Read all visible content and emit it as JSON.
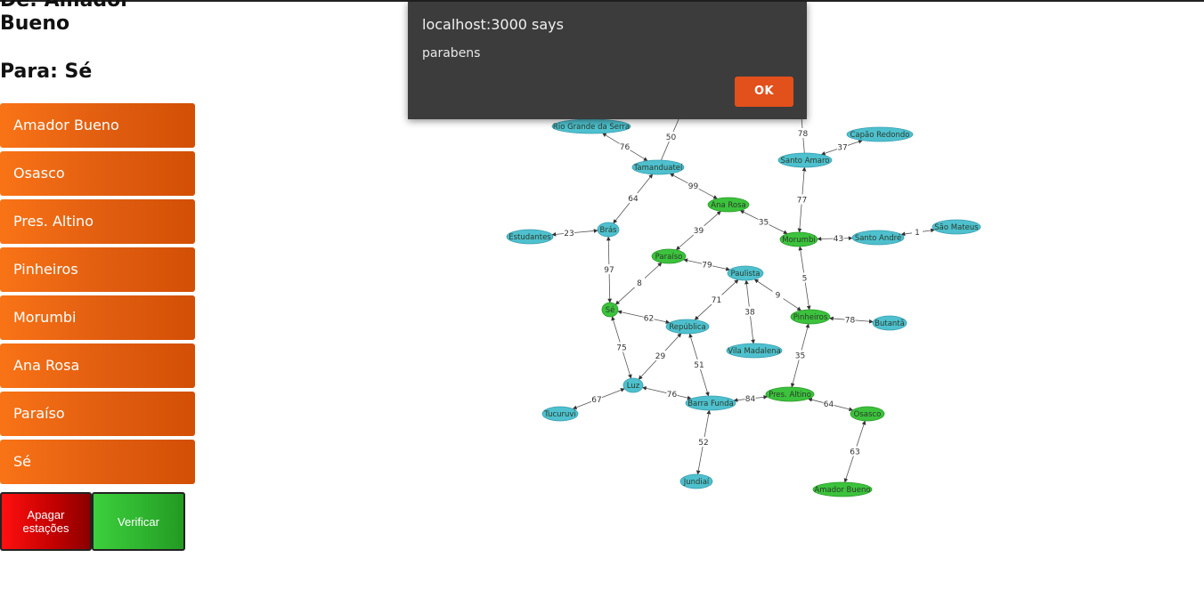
{
  "route": {
    "from_text": "De: Amador Bueno",
    "to_text": "Para: Sé"
  },
  "stations": [
    "Amador Bueno",
    "Osasco",
    "Pres. Altino",
    "Pinheiros",
    "Morumbi",
    "Ana Rosa",
    "Paraíso",
    "Sé"
  ],
  "buttons": {
    "clear": "Apagar estações",
    "verify": "Verificar"
  },
  "alert": {
    "title": "localhost:3000 says",
    "message": "parabens",
    "ok": "OK"
  },
  "colors": {
    "station_button": "#e35f0f",
    "node_default": "#4ec0ce",
    "node_selected": "#3cc23c",
    "clear_button": "#e00000",
    "verify_button": "#2fb42f",
    "alert_ok": "#e2501c"
  },
  "graph": {
    "nodes": [
      {
        "id": "rio-grande-da-serra",
        "label": "Rio Grande da Serra",
        "selected": false
      },
      {
        "id": "tamanduatei",
        "label": "Tamanduateí",
        "selected": false
      },
      {
        "id": "estudantes",
        "label": "Estudantes",
        "selected": false
      },
      {
        "id": "bras",
        "label": "Brás",
        "selected": false
      },
      {
        "id": "ana-rosa",
        "label": "Ana Rosa",
        "selected": true
      },
      {
        "id": "paraiso",
        "label": "Paraíso",
        "selected": true
      },
      {
        "id": "paulista",
        "label": "Paulista",
        "selected": false
      },
      {
        "id": "se",
        "label": "Sé",
        "selected": true
      },
      {
        "id": "republica",
        "label": "República",
        "selected": false
      },
      {
        "id": "vila-madalena",
        "label": "Vila Madalena",
        "selected": false
      },
      {
        "id": "luz",
        "label": "Luz",
        "selected": false
      },
      {
        "id": "tucuruvi",
        "label": "Tucuruvi",
        "selected": false
      },
      {
        "id": "barra-funda",
        "label": "Barra Funda",
        "selected": false
      },
      {
        "id": "jundiai",
        "label": "Jundiaí",
        "selected": false
      },
      {
        "id": "pres-altino",
        "label": "Pres. Altino",
        "selected": true
      },
      {
        "id": "osasco",
        "label": "Osasco",
        "selected": true
      },
      {
        "id": "amador-bueno",
        "label": "Amador Bueno",
        "selected": true
      },
      {
        "id": "pinheiros",
        "label": "Pinheiros",
        "selected": true
      },
      {
        "id": "butanta",
        "label": "Butantã",
        "selected": false
      },
      {
        "id": "morumbi",
        "label": "Morumbi",
        "selected": true
      },
      {
        "id": "santo-andre",
        "label": "Santo André",
        "selected": false
      },
      {
        "id": "sao-mateus",
        "label": "São Mateus",
        "selected": false
      },
      {
        "id": "santo-amaro",
        "label": "Santo Amaro",
        "selected": false
      },
      {
        "id": "capao-redondo",
        "label": "Capão Redondo",
        "selected": false
      }
    ],
    "edges": [
      {
        "from": "rio-grande-da-serra",
        "to": "tamanduatei",
        "weight": "76"
      },
      {
        "from": "tamanduatei",
        "to": "bras",
        "weight": "64"
      },
      {
        "from": "tamanduatei",
        "to": "ana-rosa",
        "weight": "99"
      },
      {
        "from": "estudantes",
        "to": "bras",
        "weight": "23"
      },
      {
        "from": "bras",
        "to": "se",
        "weight": "97"
      },
      {
        "from": "ana-rosa",
        "to": "paraiso",
        "weight": "39"
      },
      {
        "from": "ana-rosa",
        "to": "morumbi",
        "weight": "35"
      },
      {
        "from": "paraiso",
        "to": "paulista",
        "weight": "79"
      },
      {
        "from": "paraiso",
        "to": "se",
        "weight": "8"
      },
      {
        "from": "paulista",
        "to": "republica",
        "weight": "71"
      },
      {
        "from": "paulista",
        "to": "vila-madalena",
        "weight": "38"
      },
      {
        "from": "paulista",
        "to": "pinheiros",
        "weight": "9"
      },
      {
        "from": "se",
        "to": "republica",
        "weight": "62"
      },
      {
        "from": "se",
        "to": "luz",
        "weight": "75"
      },
      {
        "from": "republica",
        "to": "luz",
        "weight": "29"
      },
      {
        "from": "republica",
        "to": "barra-funda",
        "weight": "51"
      },
      {
        "from": "luz",
        "to": "tucuruvi",
        "weight": "67"
      },
      {
        "from": "luz",
        "to": "barra-funda",
        "weight": "76"
      },
      {
        "from": "barra-funda",
        "to": "jundiai",
        "weight": "52"
      },
      {
        "from": "barra-funda",
        "to": "pres-altino",
        "weight": "84"
      },
      {
        "from": "pres-altino",
        "to": "osasco",
        "weight": "64"
      },
      {
        "from": "pres-altino",
        "to": "pinheiros",
        "weight": "35"
      },
      {
        "from": "osasco",
        "to": "amador-bueno",
        "weight": "63"
      },
      {
        "from": "pinheiros",
        "to": "butanta",
        "weight": "78"
      },
      {
        "from": "pinheiros",
        "to": "morumbi",
        "weight": "5"
      },
      {
        "from": "morumbi",
        "to": "santo-andre",
        "weight": "43"
      },
      {
        "from": "morumbi",
        "to": "santo-amaro",
        "weight": "77"
      },
      {
        "from": "santo-andre",
        "to": "sao-mateus",
        "weight": "1"
      },
      {
        "from": "santo-amaro",
        "to": "capao-redondo",
        "weight": "37"
      },
      {
        "from": "tamanduatei",
        "to": "offscreen-top",
        "weight": "50"
      },
      {
        "from": "santo-amaro",
        "to": "offscreen-top-right",
        "weight": "78"
      }
    ]
  }
}
